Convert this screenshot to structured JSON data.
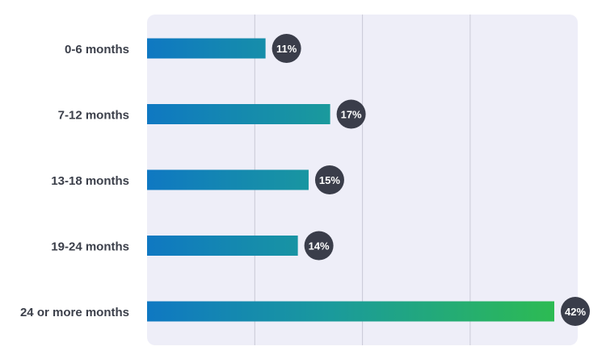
{
  "chart_data": {
    "type": "bar",
    "orientation": "horizontal",
    "categories": [
      "0-6 months",
      "7-12 months",
      "13-18 months",
      "19-24 months",
      "24 or more months"
    ],
    "values": [
      11,
      17,
      15,
      14,
      42
    ],
    "value_labels": [
      "11%",
      "17%",
      "15%",
      "14%",
      "42%"
    ],
    "xlim": [
      0,
      40
    ],
    "grid": true,
    "legend": "none",
    "colors": {
      "plot_background": "#eeeef8",
      "gridline": "#c9c9d6",
      "bar_start": "#0f78c2",
      "bar_mid": "#1a9a9c",
      "bar_end": "#2dbb52",
      "badge": "#3a3d4a",
      "category_text": "#3b3f4a"
    }
  }
}
